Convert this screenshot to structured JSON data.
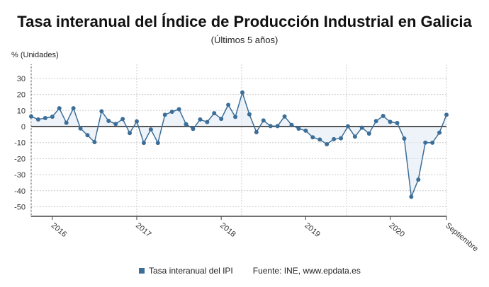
{
  "chart_data": {
    "type": "line",
    "title": "Tasa interanual del Índice de Producción Industrial en Galicia",
    "subtitle": "(Últimos 5 años)",
    "ylabel": "% (Unidades)",
    "ylim": [
      -55,
      35
    ],
    "yticks": [
      30,
      20,
      10,
      0,
      -10,
      -20,
      -30,
      -40,
      -50
    ],
    "xtick_labels": [
      {
        "label": "2016",
        "x": "2016-01"
      },
      {
        "label": "2017",
        "x": "2017-01"
      },
      {
        "label": "2018",
        "x": "2018-01"
      },
      {
        "label": "2019",
        "x": "2019-01"
      },
      {
        "label": "2020",
        "x": "2020-01"
      },
      {
        "label": "Septiembre",
        "x": "2020-09"
      }
    ],
    "grid": true,
    "legend_placement": "bottom",
    "color": "#3c6e98",
    "x": [
      "2015-10",
      "2015-11",
      "2015-12",
      "2016-01",
      "2016-02",
      "2016-03",
      "2016-04",
      "2016-05",
      "2016-06",
      "2016-07",
      "2016-08",
      "2016-09",
      "2016-10",
      "2016-11",
      "2016-12",
      "2017-01",
      "2017-02",
      "2017-03",
      "2017-04",
      "2017-05",
      "2017-06",
      "2017-07",
      "2017-08",
      "2017-09",
      "2017-10",
      "2017-11",
      "2017-12",
      "2018-01",
      "2018-02",
      "2018-03",
      "2018-04",
      "2018-05",
      "2018-06",
      "2018-07",
      "2018-08",
      "2018-09",
      "2018-10",
      "2018-11",
      "2018-12",
      "2019-01",
      "2019-02",
      "2019-03",
      "2019-04",
      "2019-05",
      "2019-06",
      "2019-07",
      "2019-08",
      "2019-09",
      "2019-10",
      "2019-11",
      "2019-12",
      "2020-01",
      "2020-02",
      "2020-03",
      "2020-04",
      "2020-05",
      "2020-06",
      "2020-07",
      "2020-08",
      "2020-09"
    ],
    "series": [
      {
        "name": "Tasa interanual del IPI",
        "values": [
          6.3,
          4.4,
          5.3,
          6.1,
          11.4,
          2.3,
          11.4,
          -1.2,
          -5.4,
          -9.7,
          9.5,
          3.5,
          1.6,
          4.7,
          -4.1,
          3.2,
          -10.2,
          -1.8,
          -10.2,
          7.3,
          9.2,
          10.8,
          1.5,
          -1.5,
          4.4,
          2.8,
          8.3,
          4.8,
          13.5,
          6.0,
          21.2,
          7.6,
          -3.5,
          3.8,
          0.3,
          0.3,
          6.3,
          1.0,
          -1.3,
          -2.6,
          -6.7,
          -8.1,
          -11.0,
          -7.9,
          -7.3,
          0.1,
          -6.3,
          -0.7,
          -4.4,
          3.4,
          6.6,
          2.9,
          2.2,
          -7.5,
          -43.8,
          -33.1,
          -10.0,
          -10.1,
          -3.8,
          7.3
        ]
      }
    ]
  },
  "legend": {
    "series_label": "Tasa interanual del IPI",
    "source": "Fuente: INE, www.epdata.es"
  }
}
